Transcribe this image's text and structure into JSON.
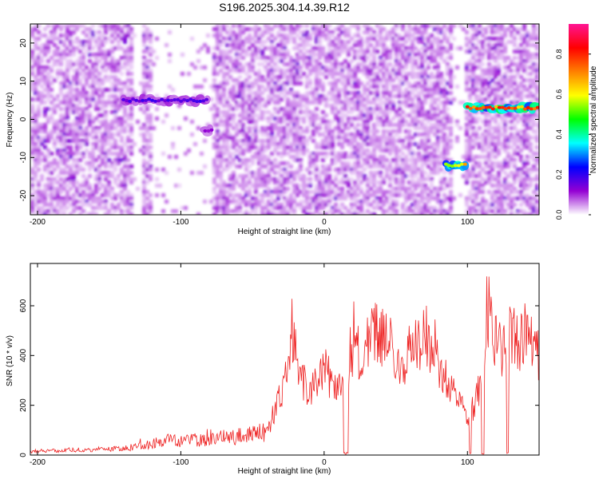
{
  "title": "S196.2025.304.14.39.R12",
  "colors": {
    "frame": "#000000",
    "snr_line": "#ee2222",
    "background": "#ffffff"
  },
  "chart_data": [
    {
      "type": "heatmap",
      "xlabel": "Height of straight line (km)",
      "ylabel": "Frequency (Hz)",
      "xlim": [
        -205,
        150
      ],
      "ylim": [
        -25,
        25
      ],
      "x_ticks": [
        "-200",
        "-100",
        "0",
        "100"
      ],
      "y_ticks": [
        "-20",
        "-10",
        "0",
        "10",
        "20"
      ],
      "colorbar": {
        "label": "Normalized spectral amplitude",
        "range": [
          0.0,
          0.95
        ],
        "ticks": [
          "0.0",
          "0.2",
          "0.4",
          "0.6",
          "0.8"
        ],
        "colormap": [
          "#ffffff",
          "#9400d3",
          "#0000ff",
          "#00ffff",
          "#00ff00",
          "#ffff00",
          "#ff8000",
          "#ff0000",
          "#ff1493"
        ]
      },
      "background_noise_level": 0.05,
      "gaps_x": [
        [
          -135,
          -128
        ],
        [
          -122,
          -80
        ],
        [
          88,
          98
        ]
      ],
      "signals": [
        {
          "x": [
            -140,
            -80
          ],
          "freq_hz": 5,
          "amplitude": 0.2
        },
        {
          "x": [
            -83,
            -78
          ],
          "freq_hz": -3,
          "amplitude": 0.15
        },
        {
          "x": [
            85,
            100
          ],
          "freq_hz": -12,
          "amplitude": 0.75
        },
        {
          "x": [
            100,
            150
          ],
          "freq_hz": 3,
          "amplitude": 0.85
        }
      ]
    },
    {
      "type": "line",
      "xlabel": "Height of straight line (km)",
      "ylabel": "SNR (10 * v/v)",
      "xlim": [
        -205,
        150
      ],
      "ylim": [
        0,
        770
      ],
      "x_ticks": [
        "-200",
        "-100",
        "0",
        "100"
      ],
      "y_ticks": [
        "0",
        "200",
        "400",
        "600"
      ],
      "series": [
        {
          "x": [
            -205,
            -180,
            -160,
            -140,
            -130,
            -120,
            -110,
            -100,
            -90,
            -80,
            -70,
            -60,
            -50,
            -40,
            -35,
            -30,
            -25,
            -20,
            -15,
            -10,
            -5,
            0,
            5,
            10,
            15,
            20,
            25,
            30,
            35,
            40,
            45,
            50,
            55,
            60,
            65,
            70,
            75,
            80,
            85,
            90,
            95,
            100,
            105,
            110,
            115,
            120,
            125,
            130,
            135,
            140,
            145,
            150
          ],
          "y": [
            15,
            20,
            22,
            25,
            35,
            45,
            60,
            55,
            60,
            65,
            70,
            75,
            80,
            100,
            150,
            250,
            350,
            450,
            300,
            250,
            300,
            350,
            300,
            280,
            320,
            400,
            420,
            480,
            500,
            480,
            450,
            400,
            380,
            420,
            450,
            500,
            430,
            350,
            300,
            250,
            200,
            150,
            200,
            300,
            600,
            450,
            400,
            500,
            450,
            480,
            450,
            400
          ]
        }
      ]
    }
  ]
}
